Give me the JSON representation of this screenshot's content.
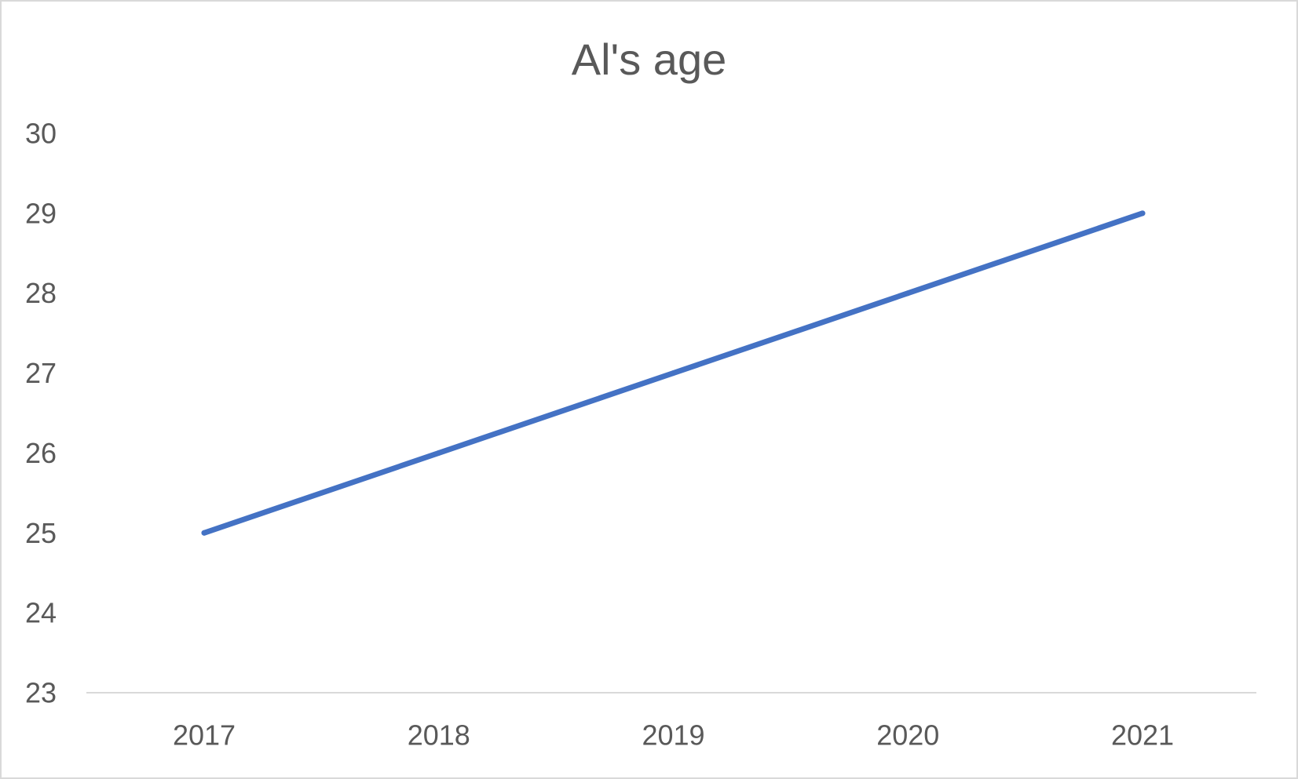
{
  "chart_data": {
    "type": "line",
    "title": "Al's age",
    "xlabel": "",
    "ylabel": "",
    "categories": [
      "2017",
      "2018",
      "2019",
      "2020",
      "2021"
    ],
    "series": [
      {
        "values": [
          25,
          26,
          27,
          28,
          29
        ],
        "color": "#4472c4"
      }
    ],
    "ylim": [
      23,
      30
    ],
    "yticks": [
      "23",
      "24",
      "25",
      "26",
      "27",
      "28",
      "29",
      "30"
    ],
    "grid": false,
    "legend": "none"
  }
}
